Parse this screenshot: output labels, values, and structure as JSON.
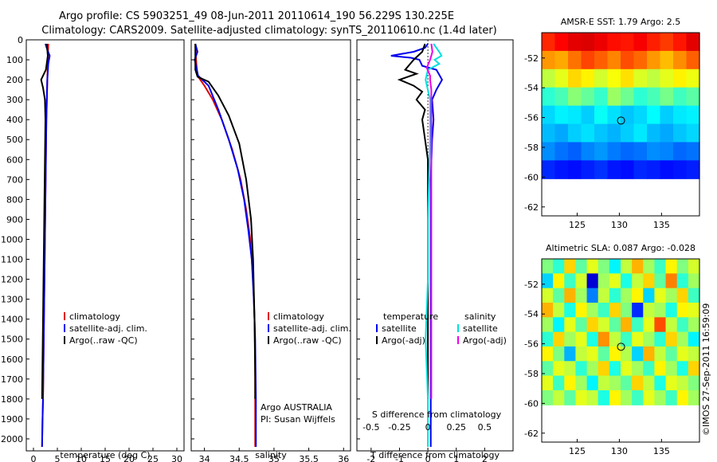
{
  "header": {
    "line1": "Argo profile: CS 5903251_49 08-Jun-2011 20110614_190 56.229S 130.225E",
    "line2": "Climatology: CARS2009. Satellite-adjusted climatology: synTS_20110610.nc (1.4d later)"
  },
  "credit": "©IMOS 27-Sep-2011 16:59:09",
  "colors": {
    "climatology": "#dd0000",
    "satellite": "#0000ee",
    "argo": "#000000",
    "sal_satellite": "#00e0e0",
    "sal_argo": "#ee00ee",
    "marker": "#000000"
  },
  "chart_data": [
    {
      "id": "temperature",
      "type": "line",
      "xlabel": "temperature (deg C)",
      "ylabel": "",
      "xlim": [
        -1.5,
        31.5
      ],
      "ylim": [
        2060,
        0
      ],
      "xticks": [
        0,
        5,
        10,
        15,
        20,
        25,
        30
      ],
      "xtick_labels": [
        "0",
        "5",
        "10",
        "15",
        "20",
        "25",
        "30"
      ],
      "yticks": [
        0,
        100,
        200,
        300,
        400,
        500,
        600,
        700,
        800,
        900,
        1000,
        1100,
        1200,
        1300,
        1400,
        1500,
        1600,
        1700,
        1800,
        1900,
        2000
      ],
      "ytick_labels": [
        "0",
        "100",
        "200",
        "300",
        "400",
        "500",
        "600",
        "700",
        "800",
        "900",
        "1000",
        "1100",
        "1200",
        "1300",
        "1400",
        "1500",
        "1600",
        "1700",
        "1800",
        "1900",
        "2000"
      ],
      "legend": [
        "climatology",
        "satellite-adj. clim.",
        "Argo(..raw -QC)"
      ],
      "series": [
        {
          "name": "climatology",
          "color": "#dd0000",
          "x": [
            3.1,
            3.0,
            2.9,
            2.8,
            2.7,
            2.6,
            2.5,
            2.4,
            2.3,
            2.2,
            2.1,
            2.0,
            1.9,
            1.8
          ],
          "y": [
            20,
            100,
            200,
            300,
            400,
            600,
            800,
            1000,
            1200,
            1400,
            1600,
            1800,
            1900,
            2040
          ]
        },
        {
          "name": "satellite-adj. clim.",
          "color": "#0000ee",
          "x": [
            2.5,
            2.9,
            3.4,
            3.1,
            2.9,
            2.8,
            2.7,
            2.6,
            2.5,
            2.4,
            2.3,
            2.2,
            2.1,
            2.0,
            1.9,
            1.8
          ],
          "y": [
            20,
            50,
            80,
            120,
            200,
            300,
            400,
            600,
            800,
            1000,
            1200,
            1400,
            1600,
            1800,
            1900,
            2040
          ]
        },
        {
          "name": "Argo(..raw -QC)",
          "color": "#000000",
          "x": [
            2.8,
            3.0,
            2.6,
            1.6,
            2.0,
            2.4,
            2.5,
            2.4,
            2.3,
            2.2,
            2.1,
            2.0,
            1.9,
            1.8
          ],
          "y": [
            20,
            80,
            150,
            200,
            240,
            300,
            400,
            600,
            800,
            1000,
            1200,
            1400,
            1600,
            1800
          ]
        }
      ]
    },
    {
      "id": "salinity",
      "type": "line",
      "xlabel": "salinity",
      "ylabel": "",
      "xlim": [
        33.81,
        36.1
      ],
      "ylim": [
        2060,
        0
      ],
      "xticks": [
        34,
        34.5,
        35,
        35.5,
        36
      ],
      "xtick_labels": [
        "34",
        "34.5",
        "35",
        "35.5",
        "36"
      ],
      "legend": [
        "climatology",
        "satellite-adj. clim.",
        "Argo(..raw -QC)"
      ],
      "annotation": [
        "Argo AUSTRALIA",
        "PI: Susan Wijffels"
      ],
      "series": [
        {
          "name": "climatology",
          "color": "#dd0000",
          "x": [
            33.87,
            33.88,
            33.9,
            34.0,
            34.12,
            34.25,
            34.4,
            34.52,
            34.6,
            34.66,
            34.7,
            34.72,
            34.73,
            34.73,
            34.73
          ],
          "y": [
            20,
            100,
            180,
            230,
            300,
            400,
            550,
            700,
            850,
            1000,
            1200,
            1400,
            1600,
            1800,
            2040
          ]
        },
        {
          "name": "satellite-adj. clim.",
          "color": "#0000ee",
          "x": [
            33.87,
            33.9,
            33.86,
            33.91,
            34.06,
            34.2,
            34.35,
            34.48,
            34.57,
            34.63,
            34.68,
            34.71,
            34.73,
            34.74,
            34.74
          ],
          "y": [
            20,
            60,
            100,
            180,
            230,
            350,
            500,
            650,
            800,
            950,
            1100,
            1300,
            1500,
            1800,
            2040
          ]
        },
        {
          "name": "Argo(..raw -QC)",
          "color": "#000000",
          "x": [
            33.87,
            33.87,
            33.9,
            34.06,
            34.2,
            34.35,
            34.5,
            34.6,
            34.67,
            34.7,
            34.72,
            34.73,
            34.73
          ],
          "y": [
            20,
            150,
            185,
            210,
            280,
            380,
            520,
            700,
            900,
            1100,
            1400,
            1700,
            1800
          ]
        }
      ]
    },
    {
      "id": "difference",
      "type": "line",
      "xlabel": "T difference from climatology",
      "top_axis_label": "S difference from climatology",
      "xlim": [
        -2.5,
        3
      ],
      "ylim": [
        2060,
        0
      ],
      "xticks": [
        -2,
        -1,
        0,
        1,
        2
      ],
      "xtick_labels": [
        "-2",
        "-1",
        "0",
        "1",
        "2"
      ],
      "sticks": [
        -0.5,
        -0.25,
        0,
        0.25,
        0.5
      ],
      "stick_labels": [
        "-0.5",
        "-0.25",
        "0",
        "0.25",
        "0.5"
      ],
      "slim": [
        -0.625,
        0.75
      ],
      "legend_temperature": {
        "title": "temperature",
        "items": [
          "satellite",
          "Argo(-adj)"
        ]
      },
      "legend_salinity": {
        "title": "salinity",
        "items": [
          "satellite",
          "Argo(-adj)"
        ]
      },
      "series": [
        {
          "name": "T satellite",
          "color": "#0000ee",
          "axis": "T",
          "x": [
            0.0,
            -0.1,
            -0.5,
            -0.9,
            -1.3,
            -0.6,
            -0.3,
            -0.2,
            0.3,
            0.5,
            0.3,
            0.15,
            0.2,
            0.15,
            0.1,
            0.1,
            0.1,
            0.1,
            0.1,
            0.1
          ],
          "y": [
            20,
            40,
            60,
            70,
            80,
            90,
            100,
            130,
            150,
            200,
            250,
            300,
            400,
            500,
            700,
            900,
            1200,
            1500,
            1800,
            2040
          ]
        },
        {
          "name": "T Argo(-adj)",
          "color": "#000000",
          "axis": "T",
          "x": [
            -0.1,
            -0.2,
            -0.5,
            -0.8,
            -0.4,
            -1.0,
            -0.5,
            -0.2,
            -0.4,
            -0.1,
            -0.2,
            0.0,
            0.0,
            0.0,
            0.0
          ],
          "y": [
            20,
            60,
            100,
            150,
            170,
            200,
            230,
            260,
            300,
            350,
            400,
            600,
            1000,
            1500,
            1800
          ]
        },
        {
          "name": "S satellite",
          "color": "#00e0e0",
          "axis": "S",
          "x": [
            0.05,
            0.1,
            0.12,
            0.06,
            0.1,
            0.0,
            -0.02,
            0.02,
            0.02,
            0.01,
            0.0,
            0.0,
            -0.02,
            0.0,
            0.0
          ],
          "y": [
            20,
            60,
            80,
            100,
            120,
            150,
            200,
            300,
            500,
            700,
            900,
            1200,
            1500,
            1800,
            2040
          ]
        },
        {
          "name": "S Argo(-adj)",
          "color": "#ee00ee",
          "axis": "S",
          "x": [
            0.03,
            0.04,
            0.02,
            -0.01,
            0.02,
            0.02,
            0.03,
            0.03,
            0.03,
            0.03,
            0.03,
            0.03,
            0.03
          ],
          "y": [
            20,
            60,
            100,
            140,
            180,
            200,
            250,
            300,
            500,
            900,
            1300,
            1600,
            1800
          ]
        }
      ]
    },
    {
      "id": "sst_map",
      "type": "heatmap",
      "title": "AMSR-E SST: 1.79 Argo: 2.5",
      "xlim": [
        120.8,
        139.5
      ],
      "ylim": [
        -62.6,
        -50.3
      ],
      "data_bottom_lat": -60.1,
      "xticks": [
        125,
        130,
        135
      ],
      "xtick_labels": [
        "125",
        "130",
        "135"
      ],
      "yticks": [
        -52,
        -54,
        -56,
        -58,
        -60,
        -62
      ],
      "ytick_labels": [
        "-52",
        "-54",
        "-56",
        "-58",
        "-60",
        "-62"
      ],
      "marker": {
        "lon": 130.2,
        "lat": -56.2
      },
      "cols": 12,
      "rows": 8,
      "values": [
        [
          8.2,
          8.6,
          8.9,
          9.0,
          8.8,
          8.5,
          8.4,
          8.7,
          8.3,
          8.0,
          8.4,
          8.9
        ],
        [
          7.0,
          6.8,
          7.4,
          7.9,
          7.6,
          7.2,
          7.8,
          7.5,
          7.0,
          6.6,
          7.1,
          7.6
        ],
        [
          5.2,
          5.6,
          6.3,
          6.0,
          5.4,
          5.8,
          6.2,
          5.5,
          5.2,
          5.6,
          6.0,
          5.7
        ],
        [
          3.6,
          3.9,
          4.6,
          4.2,
          3.7,
          4.8,
          4.3,
          3.6,
          3.9,
          4.4,
          3.8,
          4.1
        ],
        [
          2.7,
          3.0,
          2.9,
          2.6,
          3.2,
          2.8,
          2.5,
          2.7,
          3.1,
          2.6,
          2.9,
          3.0
        ],
        [
          2.4,
          2.2,
          2.6,
          2.8,
          2.5,
          2.3,
          2.6,
          2.9,
          2.4,
          2.2,
          2.5,
          2.7
        ],
        [
          1.9,
          1.6,
          1.4,
          1.8,
          2.0,
          1.7,
          1.5,
          1.6,
          1.9,
          1.8,
          1.5,
          1.6
        ],
        [
          0.8,
          0.6,
          0.5,
          0.7,
          0.9,
          0.6,
          0.5,
          0.8,
          0.7,
          0.5,
          0.6,
          0.7
        ]
      ]
    },
    {
      "id": "sla_map",
      "type": "heatmap",
      "title": "Altimetric SLA: 0.087 Argo: -0.028",
      "xlim": [
        120.8,
        139.5
      ],
      "ylim": [
        -62.6,
        -50.3
      ],
      "data_bottom_lat": -60.1,
      "xticks": [
        125,
        130,
        135
      ],
      "xtick_labels": [
        "125",
        "130",
        "135"
      ],
      "yticks": [
        -52,
        -54,
        -56,
        -58,
        -60,
        -62
      ],
      "ytick_labels": [
        "-52",
        "-54",
        "-56",
        "-58",
        "-60",
        "-62"
      ],
      "marker": {
        "lon": 130.2,
        "lat": -56.2
      },
      "cols": 14,
      "rows": 10,
      "values": [
        [
          0.0,
          -0.05,
          0.1,
          -0.02,
          0.06,
          0.0,
          -0.08,
          0.04,
          0.12,
          0.02,
          -0.04,
          0.08,
          0.0,
          0.05
        ],
        [
          -0.1,
          0.08,
          -0.04,
          0.05,
          -0.25,
          0.02,
          0.06,
          -0.06,
          0.04,
          0.1,
          -0.02,
          0.15,
          -0.05,
          0.02
        ],
        [
          0.05,
          -0.02,
          0.12,
          0.02,
          -0.15,
          0.04,
          -0.05,
          0.02,
          0.08,
          -0.1,
          0.06,
          0.02,
          0.1,
          -0.04
        ],
        [
          0.12,
          0.04,
          -0.06,
          0.08,
          0.02,
          -0.04,
          0.1,
          0.0,
          -0.2,
          0.04,
          0.02,
          -0.06,
          0.08,
          0.06
        ],
        [
          0.02,
          -0.08,
          0.06,
          -0.02,
          0.1,
          0.05,
          -0.02,
          0.12,
          -0.04,
          0.06,
          0.18,
          0.04,
          -0.04,
          0.02
        ],
        [
          -0.05,
          0.1,
          0.02,
          0.06,
          -0.06,
          0.14,
          0.04,
          -0.04,
          0.06,
          0.02,
          -0.05,
          0.1,
          0.02,
          -0.08
        ],
        [
          0.08,
          0.0,
          -0.12,
          0.04,
          0.06,
          -0.02,
          0.08,
          0.03,
          -0.1,
          0.12,
          0.04,
          -0.02,
          0.06,
          0.04
        ],
        [
          -0.02,
          0.06,
          0.04,
          -0.05,
          0.02,
          0.1,
          -0.06,
          0.06,
          0.02,
          -0.04,
          0.08,
          0.02,
          -0.06,
          0.1
        ],
        [
          0.06,
          -0.04,
          0.08,
          0.02,
          -0.08,
          0.04,
          0.02,
          -0.02,
          0.1,
          0.04,
          -0.06,
          0.06,
          0.04,
          0.0
        ],
        [
          0.0,
          0.04,
          -0.02,
          0.06,
          0.04,
          -0.06,
          0.08,
          0.02,
          -0.04,
          0.06,
          0.02,
          -0.04,
          0.08,
          0.02
        ]
      ]
    }
  ]
}
